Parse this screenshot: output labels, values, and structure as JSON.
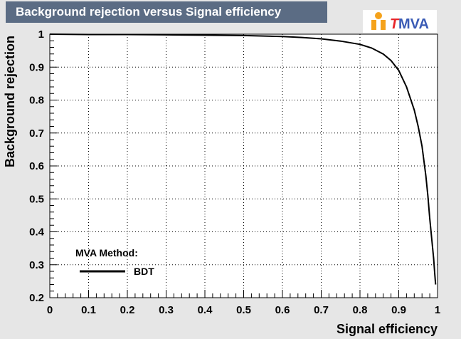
{
  "header": {
    "title": "Background rejection versus Signal efficiency",
    "logo_text_t": "T",
    "logo_text_mva": "MVA"
  },
  "colors": {
    "header_bg": "#5b6c84",
    "canvas_bg": "#e6e6e6",
    "plot_bg": "#ffffff",
    "curve": "#000000",
    "logo_t": "#e8262a",
    "logo_mva": "#3a5bb5",
    "logo_figure": "#f5a21b"
  },
  "chart_data": {
    "type": "line",
    "title": "Background rejection versus Signal efficiency",
    "xlabel": "Signal efficiency",
    "ylabel": "Background rejection",
    "xlim": [
      0,
      1
    ],
    "ylim": [
      0.2,
      1
    ],
    "grid": true,
    "x_ticks": [
      "0",
      "0.1",
      "0.2",
      "0.3",
      "0.4",
      "0.5",
      "0.6",
      "0.7",
      "0.8",
      "0.9",
      "1"
    ],
    "y_ticks": [
      "0.2",
      "0.3",
      "0.4",
      "0.5",
      "0.6",
      "0.7",
      "0.8",
      "0.9",
      "1"
    ],
    "legend": {
      "header": "MVA Method:",
      "placement": "bottom-left",
      "entries": [
        "BDT"
      ]
    },
    "series": [
      {
        "name": "BDT",
        "x": [
          0.0,
          0.1,
          0.2,
          0.3,
          0.4,
          0.5,
          0.6,
          0.65,
          0.7,
          0.75,
          0.8,
          0.83,
          0.86,
          0.88,
          0.9,
          0.92,
          0.94,
          0.95,
          0.96,
          0.97,
          0.975,
          0.98,
          0.985,
          0.99,
          0.993,
          0.995
        ],
        "y": [
          1.0,
          0.999,
          0.999,
          0.998,
          0.997,
          0.996,
          0.993,
          0.99,
          0.986,
          0.979,
          0.969,
          0.958,
          0.94,
          0.92,
          0.89,
          0.84,
          0.77,
          0.72,
          0.66,
          0.57,
          0.51,
          0.44,
          0.38,
          0.32,
          0.27,
          0.24
        ]
      }
    ]
  }
}
